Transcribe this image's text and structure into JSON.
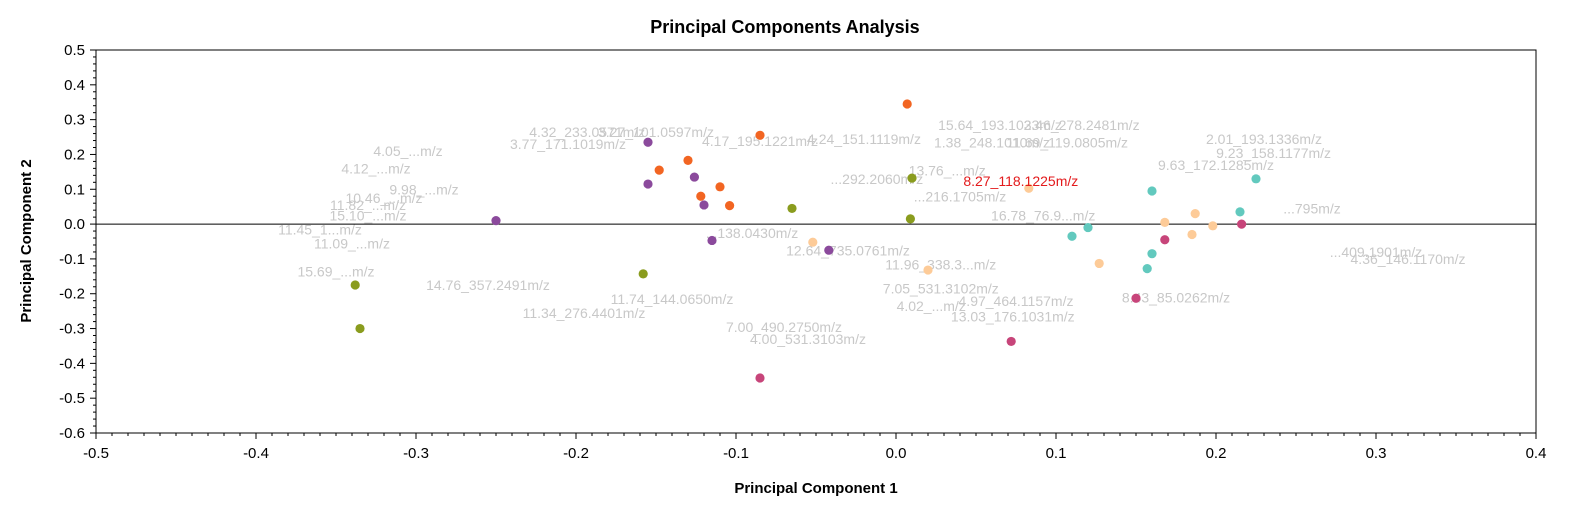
{
  "chart_data": {
    "type": "scatter",
    "title": "Principal Components Analysis",
    "xlabel": "Principal Component 1",
    "ylabel": "Principal Component 2",
    "xlim": [
      -0.5,
      0.4
    ],
    "ylim": [
      -0.6,
      0.5
    ],
    "x_ticks": [
      "-0.5",
      "-0.4",
      "-0.3",
      "-0.2",
      "-0.1",
      "0.0",
      "0.1",
      "0.2",
      "0.3",
      "0.4"
    ],
    "y_ticks": [
      "0.5",
      "0.4",
      "0.3",
      "0.2",
      "0.1",
      "0.0",
      "-0.1",
      "-0.2",
      "-0.3",
      "-0.4",
      "-0.5",
      "-0.6"
    ],
    "grid": false,
    "zero_line": true,
    "highlighted_label": {
      "text": "8.27_118.1225m/z",
      "x": 0.078,
      "y": 0.11,
      "color": "#e31a1c"
    },
    "variable_labels": [
      {
        "text": "4.32_233.0571m/z",
        "x": -0.193,
        "y": 0.25
      },
      {
        "text": "3.27_101.0597m/z",
        "x": -0.15,
        "y": 0.25
      },
      {
        "text": "3.77_171.1019m/z",
        "x": -0.205,
        "y": 0.215
      },
      {
        "text": "4.17_195.1221m/z",
        "x": -0.085,
        "y": 0.225
      },
      {
        "text": "4.24_151.1119m/z",
        "x": -0.02,
        "y": 0.23
      },
      {
        "text": "15.64_193.1033m/z",
        "x": 0.065,
        "y": 0.27
      },
      {
        "text": "2.46_278.2481m/z",
        "x": 0.116,
        "y": 0.27
      },
      {
        "text": "1.38_248.1010m/z",
        "x": 0.06,
        "y": 0.22
      },
      {
        "text": "11.69_119.0805m/z",
        "x": 0.107,
        "y": 0.22
      },
      {
        "text": "13.76_...m/z",
        "x": 0.032,
        "y": 0.14
      },
      {
        "text": "2.01_193.1336m/z",
        "x": 0.23,
        "y": 0.23
      },
      {
        "text": "9.23_158.1177m/z",
        "x": 0.236,
        "y": 0.19
      },
      {
        "text": "9.63_172.1285m/z",
        "x": 0.2,
        "y": 0.155
      },
      {
        "text": "4.05_...m/z",
        "x": -0.305,
        "y": 0.195
      },
      {
        "text": "4.12_...m/z",
        "x": -0.325,
        "y": 0.145
      },
      {
        "text": "9.98_...m/z",
        "x": -0.295,
        "y": 0.085
      },
      {
        "text": "10.46_...m/z",
        "x": -0.32,
        "y": 0.06
      },
      {
        "text": "11.82_...m/z",
        "x": -0.33,
        "y": 0.04
      },
      {
        "text": "15.10_...m/z",
        "x": -0.33,
        "y": 0.01
      },
      {
        "text": "11.45_1...m/z",
        "x": -0.36,
        "y": -0.03
      },
      {
        "text": "11.09_...m/z",
        "x": -0.34,
        "y": -0.07
      },
      {
        "text": "15.69_...m/z",
        "x": -0.35,
        "y": -0.15
      },
      {
        "text": "14.76_357.2491m/z",
        "x": -0.255,
        "y": -0.19
      },
      {
        "text": "11.34_276.4401m/z",
        "x": -0.195,
        "y": -0.27
      },
      {
        "text": "11.74_144.0650m/z",
        "x": -0.14,
        "y": -0.23
      },
      {
        "text": "4.00_531.3103m/z",
        "x": -0.055,
        "y": -0.345
      },
      {
        "text": "7.00_490.2750m/z",
        "x": -0.07,
        "y": -0.31
      },
      {
        "text": "7.05_531.3102m/z",
        "x": 0.028,
        "y": -0.2
      },
      {
        "text": "4.97_464.1157m/z",
        "x": 0.075,
        "y": -0.235
      },
      {
        "text": "4.02_...m/z",
        "x": 0.022,
        "y": -0.25
      },
      {
        "text": "13.03_176.1031m/z",
        "x": 0.073,
        "y": -0.28
      },
      {
        "text": "8.43_85.0262m/z",
        "x": 0.175,
        "y": -0.225
      },
      {
        "text": "11.96_338.3...m/z",
        "x": 0.028,
        "y": -0.13
      },
      {
        "text": "12.64_735.0761m/z",
        "x": -0.03,
        "y": -0.09
      },
      {
        "text": "16.78_76.9...m/z",
        "x": 0.092,
        "y": 0.01
      },
      {
        "text": "...216.1705m/z",
        "x": 0.04,
        "y": 0.065
      },
      {
        "text": "...292.2060m/z",
        "x": -0.012,
        "y": 0.115
      },
      {
        "text": "...138.0430m/z",
        "x": -0.09,
        "y": -0.04
      },
      {
        "text": "4.36_146.1170m/z",
        "x": 0.32,
        "y": -0.115
      },
      {
        "text": "...409.1901m/z",
        "x": 0.3,
        "y": -0.095
      },
      {
        "text": "...795m/z",
        "x": 0.26,
        "y": 0.03
      }
    ],
    "series": [
      {
        "color": "#f26522",
        "points": [
          {
            "x": 0.007,
            "y": 0.345
          },
          {
            "x": -0.085,
            "y": 0.255
          },
          {
            "x": -0.13,
            "y": 0.183
          },
          {
            "x": -0.148,
            "y": 0.155
          },
          {
            "x": -0.11,
            "y": 0.107
          },
          {
            "x": -0.122,
            "y": 0.08
          },
          {
            "x": -0.104,
            "y": 0.053
          }
        ]
      },
      {
        "color": "#8b4a9c",
        "points": [
          {
            "x": -0.155,
            "y": 0.235
          },
          {
            "x": -0.155,
            "y": 0.115
          },
          {
            "x": -0.126,
            "y": 0.135
          },
          {
            "x": -0.12,
            "y": 0.055
          },
          {
            "x": -0.25,
            "y": 0.01
          },
          {
            "x": -0.115,
            "y": -0.047
          },
          {
            "x": -0.042,
            "y": -0.075
          }
        ]
      },
      {
        "color": "#8a9c1e",
        "points": [
          {
            "x": 0.01,
            "y": 0.132
          },
          {
            "x": -0.065,
            "y": 0.045
          },
          {
            "x": 0.009,
            "y": 0.015
          },
          {
            "x": -0.158,
            "y": -0.143
          },
          {
            "x": -0.338,
            "y": -0.175
          },
          {
            "x": -0.335,
            "y": -0.3
          }
        ]
      },
      {
        "color": "#fdcb98",
        "points": [
          {
            "x": 0.083,
            "y": 0.103
          },
          {
            "x": -0.052,
            "y": -0.052
          },
          {
            "x": 0.02,
            "y": -0.132
          },
          {
            "x": 0.127,
            "y": -0.113
          },
          {
            "x": 0.168,
            "y": 0.005
          },
          {
            "x": 0.187,
            "y": 0.03
          },
          {
            "x": 0.185,
            "y": -0.03
          },
          {
            "x": 0.198,
            "y": -0.005
          }
        ]
      },
      {
        "color": "#62c9be",
        "points": [
          {
            "x": 0.16,
            "y": 0.095
          },
          {
            "x": 0.225,
            "y": 0.13
          },
          {
            "x": 0.215,
            "y": 0.035
          },
          {
            "x": 0.12,
            "y": -0.01
          },
          {
            "x": 0.11,
            "y": -0.035
          },
          {
            "x": 0.16,
            "y": -0.085
          },
          {
            "x": 0.157,
            "y": -0.128
          }
        ]
      },
      {
        "color": "#c7457a",
        "points": [
          {
            "x": 0.216,
            "y": 0.0
          },
          {
            "x": 0.168,
            "y": -0.045
          },
          {
            "x": 0.15,
            "y": -0.213
          },
          {
            "x": 0.072,
            "y": -0.337
          },
          {
            "x": -0.085,
            "y": -0.442
          }
        ]
      }
    ]
  }
}
